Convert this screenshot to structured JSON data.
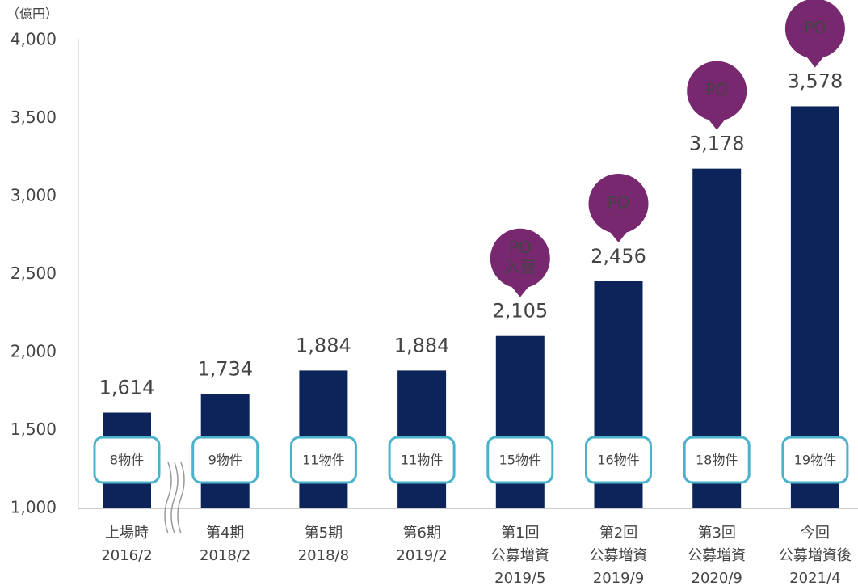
{
  "chart_data": {
    "type": "bar",
    "y_label": "（億円）",
    "categories": [
      [
        "上場時",
        "2016/2"
      ],
      [
        "第4期",
        "2018/2"
      ],
      [
        "第5期",
        "2018/8"
      ],
      [
        "第6期",
        "2019/2"
      ],
      [
        "第1回",
        "公募増資",
        "2019/5"
      ],
      [
        "第2回",
        "公募増資",
        "2019/9"
      ],
      [
        "第3回",
        "公募増資",
        "2020/9"
      ],
      [
        "今回",
        "公募増資後",
        "2021/4"
      ]
    ],
    "values": [
      1614,
      1734,
      1884,
      1884,
      2105,
      2456,
      3178,
      3578
    ],
    "value_labels": [
      "1,614",
      "1,734",
      "1,884",
      "1,884",
      "2,105",
      "2,456",
      "3,178",
      "3,578"
    ],
    "badges": [
      "8物件",
      "9物件",
      "11物件",
      "11物件",
      "15物件",
      "16物件",
      "18物件",
      "19物件"
    ],
    "callouts": [
      null,
      null,
      null,
      null,
      [
        "PO",
        "入替"
      ],
      [
        "PO"
      ],
      [
        "PO"
      ],
      [
        "PO"
      ]
    ],
    "color": "#0c2459",
    "callout_color": "#77286f",
    "badge_color": "#4ab3cb",
    "ylim": [
      1000,
      4000
    ],
    "yticks": [
      {
        "value": 1000,
        "label": "1,000"
      },
      {
        "value": 1500,
        "label": "1,500"
      },
      {
        "value": 2000,
        "label": "2,000"
      },
      {
        "value": 2500,
        "label": "2,500"
      },
      {
        "value": 3000,
        "label": "3,000"
      },
      {
        "value": 3500,
        "label": "3,500"
      },
      {
        "value": 4000,
        "label": "4,000"
      }
    ]
  }
}
